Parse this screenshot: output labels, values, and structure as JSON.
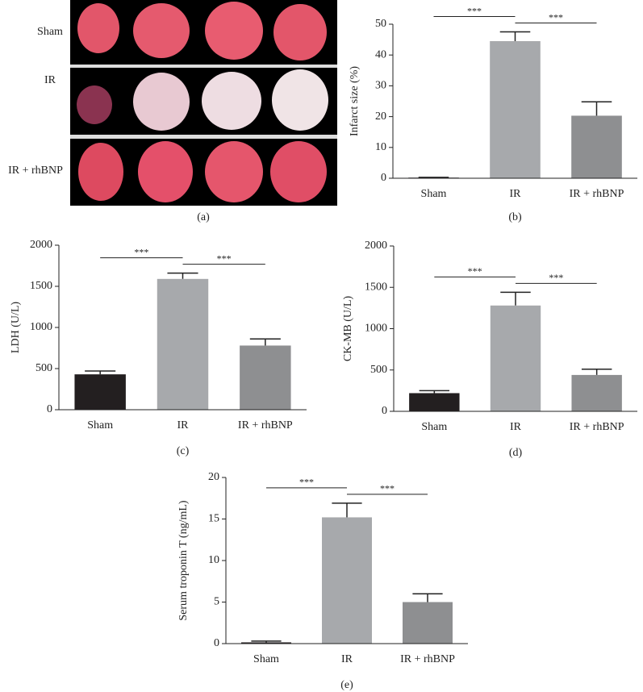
{
  "panel_a": {
    "rows": [
      "Sham",
      "IR",
      "IR + rhBNP"
    ],
    "caption": "(a)"
  },
  "chart_data": [
    {
      "type": "bar",
      "caption": "(b)",
      "ylabel": "Infarct size (%)",
      "categories": [
        "Sham",
        "IR",
        "IR + rhBNP"
      ],
      "values": [
        0.2,
        44.5,
        20.3
      ],
      "errors": [
        0.1,
        3,
        4.5
      ],
      "colors": [
        "#231f20",
        "#a7a9ac",
        "#8e8f91"
      ],
      "ylim": [
        0,
        50
      ],
      "yticks": [
        0,
        10,
        20,
        30,
        40,
        50
      ],
      "significance": [
        {
          "groups": [
            "Sham",
            "IR"
          ],
          "label": "***"
        },
        {
          "groups": [
            "IR",
            "IR + rhBNP"
          ],
          "label": "***"
        }
      ]
    },
    {
      "type": "bar",
      "caption": "(c)",
      "ylabel": "LDH (U/L)",
      "categories": [
        "Sham",
        "IR",
        "IR + rhBNP"
      ],
      "values": [
        430,
        1590,
        780
      ],
      "errors": [
        40,
        70,
        80
      ],
      "colors": [
        "#231f20",
        "#a7a9ac",
        "#8e8f91"
      ],
      "ylim": [
        0,
        2000
      ],
      "yticks": [
        0,
        500,
        1000,
        1500,
        2000
      ],
      "significance": [
        {
          "groups": [
            "Sham",
            "IR"
          ],
          "label": "***"
        },
        {
          "groups": [
            "IR",
            "IR + rhBNP"
          ],
          "label": "***"
        }
      ]
    },
    {
      "type": "bar",
      "caption": "(d)",
      "ylabel": "CK-MB (U/L)",
      "categories": [
        "Sham",
        "IR",
        "IR + rhBNP"
      ],
      "values": [
        220,
        1280,
        440
      ],
      "errors": [
        30,
        160,
        70
      ],
      "colors": [
        "#231f20",
        "#a7a9ac",
        "#8e8f91"
      ],
      "ylim": [
        0,
        2000
      ],
      "yticks": [
        0,
        500,
        1000,
        1500,
        2000
      ],
      "significance": [
        {
          "groups": [
            "Sham",
            "IR"
          ],
          "label": "***"
        },
        {
          "groups": [
            "IR",
            "IR + rhBNP"
          ],
          "label": "***"
        }
      ]
    },
    {
      "type": "bar",
      "caption": "(e)",
      "ylabel": "Serum troponin T (ng/mL)",
      "categories": [
        "Sham",
        "IR",
        "IR + rhBNP"
      ],
      "values": [
        0.15,
        15.2,
        5
      ],
      "errors": [
        0.15,
        1.7,
        1
      ],
      "colors": [
        "#231f20",
        "#a7a9ac",
        "#8e8f91"
      ],
      "ylim": [
        0,
        20
      ],
      "yticks": [
        0,
        5,
        10,
        15,
        20
      ],
      "significance": [
        {
          "groups": [
            "Sham",
            "IR"
          ],
          "label": "***"
        },
        {
          "groups": [
            "IR",
            "IR + rhBNP"
          ],
          "label": "***"
        }
      ]
    }
  ]
}
